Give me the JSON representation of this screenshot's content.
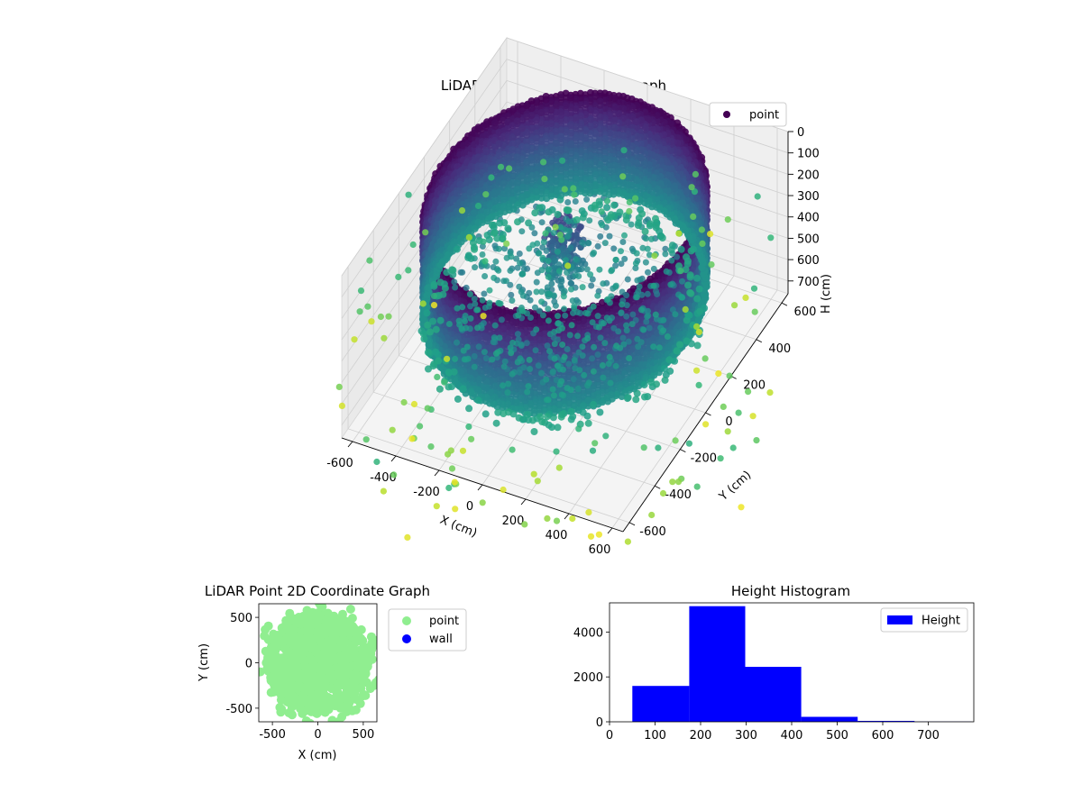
{
  "chart_data": [
    {
      "type": "scatter",
      "projection": "3d",
      "title": "LiDAR Point 3D Coordinate Graph",
      "xlabel": "X (cm)",
      "ylabel": "Y (cm)",
      "zlabel": "H (cm)",
      "xlim": [
        -650,
        650
      ],
      "ylim": [
        -650,
        650
      ],
      "zlim": [
        760,
        0
      ],
      "z_axis_inverted": true,
      "xticks": [
        "-600",
        "-400",
        "-200",
        "0",
        "200",
        "400",
        "600"
      ],
      "yticks": [
        "-600",
        "-400",
        "-200",
        "0",
        "200",
        "400",
        "600"
      ],
      "zticks": [
        "0",
        "100",
        "200",
        "300",
        "400",
        "500",
        "600",
        "700"
      ],
      "colormap": "viridis",
      "grid": true,
      "legend": "top-right",
      "series": [
        {
          "name": "point",
          "color": "#440154"
        }
      ],
      "structure": {
        "wall_radius": 560,
        "wall_top_height": 0,
        "wall_bottom_height": 470,
        "floor_ring_radius": 540,
        "floor_ring_height": 520
      }
    },
    {
      "type": "scatter",
      "title": "LiDAR Point 2D Coordinate Graph",
      "xlabel": "X (cm)",
      "ylabel": "Y (cm)",
      "xlim": [
        -650,
        650
      ],
      "ylim": [
        -650,
        650
      ],
      "xticks": [
        "-500",
        "0",
        "500"
      ],
      "yticks": [
        "-500",
        "0",
        "500"
      ],
      "legend": "outside-right",
      "series": [
        {
          "name": "point",
          "color": "#90ee90"
        },
        {
          "name": "wall",
          "color": "#0000ff"
        }
      ]
    },
    {
      "type": "bar",
      "title": "Height Histogram",
      "xlim": [
        0,
        800
      ],
      "ylim": [
        0,
        5300
      ],
      "xticks": [
        "0",
        "100",
        "200",
        "300",
        "400",
        "500",
        "600",
        "700"
      ],
      "yticks": [
        "0",
        "2000",
        "4000"
      ],
      "legend": "top-right",
      "series": [
        {
          "name": "Height",
          "color": "#0000ff",
          "bins": [
            {
              "start": 50,
              "end": 175,
              "count": 1600
            },
            {
              "start": 175,
              "end": 298,
              "count": 5150
            },
            {
              "start": 298,
              "end": 421,
              "count": 2450
            },
            {
              "start": 421,
              "end": 545,
              "count": 220
            },
            {
              "start": 545,
              "end": 670,
              "count": 40
            },
            {
              "start": 670,
              "end": 795,
              "count": 8
            }
          ]
        }
      ]
    }
  ]
}
